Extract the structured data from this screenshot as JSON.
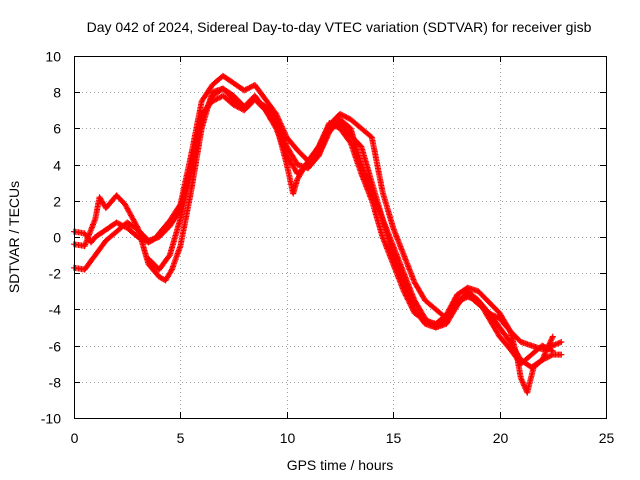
{
  "chart_data": {
    "type": "scatter",
    "title": "Day 042 of 2024, Sidereal Day-to-day VTEC variation (SDTVAR) for receiver gisb",
    "xlabel": "GPS time / hours",
    "ylabel": "SDTVAR / TECUs",
    "xlim": [
      0,
      25
    ],
    "ylim": [
      -10,
      10
    ],
    "xticks": [
      0,
      5,
      10,
      15,
      20,
      25
    ],
    "yticks": [
      -10,
      -8,
      -6,
      -4,
      -2,
      0,
      2,
      4,
      6,
      8,
      10
    ],
    "grid": true,
    "marker": "plus",
    "color": "#ff0000",
    "series": [
      {
        "name": "track-1",
        "x": [
          0.0,
          0.5,
          0.8,
          1.0,
          1.5,
          2.0,
          2.5,
          3.0,
          3.5,
          3.8,
          4.0,
          4.5,
          5.0,
          5.5,
          6.0,
          6.5,
          7.0,
          7.5,
          8.0,
          8.5,
          9.0,
          9.5,
          10.0,
          10.5,
          11.0,
          11.5,
          12.0,
          12.5,
          13.0,
          13.5,
          14.0,
          14.5,
          15.0,
          15.5,
          16.0,
          16.5,
          17.0,
          17.5,
          18.0,
          18.5,
          19.0,
          19.5,
          20.0,
          20.5,
          21.0,
          21.5,
          22.0,
          22.5,
          22.9
        ],
        "y": [
          0.3,
          0.2,
          -0.3,
          0.0,
          0.4,
          0.8,
          0.5,
          0.0,
          -0.3,
          -0.1,
          0.2,
          0.9,
          1.8,
          4.5,
          7.5,
          8.4,
          8.9,
          8.5,
          8.1,
          8.4,
          7.6,
          6.8,
          5.5,
          4.8,
          4.2,
          5.0,
          6.2,
          6.8,
          6.5,
          6.0,
          5.5,
          2.5,
          0.5,
          -1.0,
          -2.5,
          -3.5,
          -4.0,
          -4.5,
          -3.5,
          -3.2,
          -3.7,
          -4.2,
          -4.5,
          -5.2,
          -5.8,
          -6.0,
          -6.2,
          -6.0,
          -5.8
        ]
      },
      {
        "name": "track-2",
        "x": [
          0.0,
          0.5,
          1.0,
          1.2,
          1.5,
          2.0,
          2.4,
          3.0,
          3.5,
          4.0,
          4.3,
          4.6,
          5.0,
          5.5,
          6.0,
          6.5,
          7.0,
          7.5,
          8.0,
          8.5,
          9.0,
          9.5,
          10.0,
          10.3,
          10.5,
          11.0,
          11.5,
          12.0,
          12.5,
          13.0,
          13.5,
          14.0,
          14.5,
          15.0,
          15.5,
          16.0,
          16.5,
          17.0,
          17.5,
          18.0,
          18.5,
          19.0,
          19.5,
          20.0,
          20.5,
          21.0,
          21.5,
          22.0,
          22.5,
          22.9
        ],
        "y": [
          -0.4,
          -0.5,
          1.0,
          2.2,
          1.6,
          2.3,
          1.8,
          0.5,
          -1.5,
          -2.2,
          -2.4,
          -1.8,
          -0.5,
          2.5,
          6.0,
          8.0,
          8.2,
          7.6,
          7.2,
          7.6,
          7.0,
          6.2,
          4.0,
          2.4,
          3.2,
          4.2,
          4.5,
          6.0,
          6.3,
          5.6,
          5.0,
          3.0,
          1.0,
          -0.5,
          -2.0,
          -3.5,
          -4.5,
          -5.0,
          -4.8,
          -3.8,
          -3.0,
          -3.5,
          -4.2,
          -5.0,
          -5.8,
          -6.8,
          -7.2,
          -6.8,
          -6.5,
          -6.5
        ]
      },
      {
        "name": "track-3",
        "x": [
          0.0,
          0.5,
          1.0,
          1.5,
          2.0,
          2.5,
          3.0,
          3.5,
          4.0,
          4.5,
          5.0,
          5.5,
          6.0,
          6.5,
          7.0,
          7.5,
          8.0,
          8.5,
          9.0,
          9.5,
          10.0,
          10.5,
          11.0,
          11.5,
          12.0,
          12.5,
          13.0,
          13.5,
          14.0,
          14.5,
          15.0,
          15.5,
          16.0,
          16.5,
          17.0,
          17.5,
          18.0,
          18.5,
          19.0,
          19.5,
          20.0,
          20.5,
          21.0,
          21.5,
          22.0,
          22.5
        ],
        "y": [
          -1.7,
          -1.8,
          -1.0,
          -0.2,
          0.3,
          0.8,
          0.4,
          -0.2,
          0.0,
          0.6,
          1.5,
          4.0,
          6.8,
          7.5,
          7.8,
          7.3,
          7.0,
          7.6,
          7.2,
          6.5,
          5.0,
          4.0,
          3.8,
          4.5,
          5.8,
          6.5,
          6.0,
          4.0,
          2.5,
          1.0,
          -1.0,
          -2.5,
          -4.0,
          -4.8,
          -5.0,
          -4.5,
          -3.6,
          -3.3,
          -3.5,
          -4.5,
          -5.5,
          -6.2,
          -7.0,
          -6.5,
          -6.0,
          -6.3
        ]
      },
      {
        "name": "track-4",
        "x": [
          3.5,
          4.0,
          4.5,
          5.0,
          5.5,
          6.0,
          6.5,
          7.0,
          7.5,
          8.0,
          8.5,
          9.0,
          9.5,
          10.0,
          10.5,
          11.0,
          11.5,
          12.0,
          12.5,
          13.0,
          13.5,
          14.0,
          14.5,
          15.0,
          15.5,
          16.0,
          16.5,
          17.0,
          17.5,
          18.0,
          18.5,
          19.0,
          19.5,
          20.0,
          20.5,
          20.8,
          21.0,
          21.3,
          21.6,
          22.0,
          22.5
        ],
        "y": [
          -1.2,
          -1.8,
          -1.0,
          1.0,
          3.5,
          6.5,
          7.8,
          8.2,
          7.8,
          7.2,
          7.8,
          7.0,
          6.0,
          4.5,
          3.5,
          4.0,
          5.0,
          6.3,
          6.0,
          5.2,
          3.5,
          2.0,
          0.0,
          -1.5,
          -3.0,
          -4.2,
          -4.6,
          -4.8,
          -4.3,
          -3.2,
          -2.8,
          -3.0,
          -3.6,
          -4.2,
          -5.2,
          -6.5,
          -7.8,
          -8.6,
          -7.2,
          -6.8,
          -5.5
        ]
      }
    ]
  }
}
